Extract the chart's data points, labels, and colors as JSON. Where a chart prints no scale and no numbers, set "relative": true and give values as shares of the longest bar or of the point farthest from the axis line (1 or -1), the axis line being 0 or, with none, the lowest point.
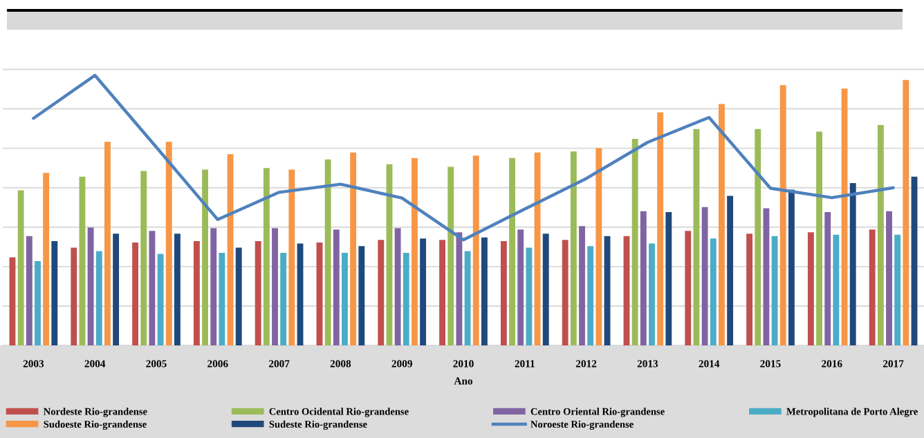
{
  "chart_data": {
    "type": "bar",
    "relative": true,
    "xlabel": "Ano",
    "grid": "y",
    "legend": "bottom",
    "categories": [
      "2003",
      "2004",
      "2005",
      "2006",
      "2007",
      "2008",
      "2009",
      "2010",
      "2011",
      "2012",
      "2013",
      "2014",
      "2015",
      "2016",
      "2017"
    ],
    "series": [
      {
        "name": "Nordeste Rio-grandense",
        "color": "#c0504d",
        "values": [
          0.326,
          0.362,
          0.381,
          0.386,
          0.386,
          0.381,
          0.391,
          0.391,
          0.386,
          0.391,
          0.405,
          0.424,
          0.414,
          0.419,
          0.429
        ]
      },
      {
        "name": "Centro Ocidental Rio-grandense",
        "color": "#9bbb59",
        "values": [
          0.574,
          0.625,
          0.646,
          0.651,
          0.657,
          0.689,
          0.671,
          0.661,
          0.694,
          0.718,
          0.765,
          0.801,
          0.801,
          0.792,
          0.816
        ]
      },
      {
        "name": "Centro Oriental Rio-grandense",
        "color": "#8064a2",
        "values": [
          0.405,
          0.437,
          0.424,
          0.434,
          0.434,
          0.429,
          0.434,
          0.419,
          0.429,
          0.442,
          0.497,
          0.512,
          0.508,
          0.494,
          0.497
        ]
      },
      {
        "name": "Metropolitana de Porto Alegre",
        "color": "#4bacc6",
        "values": [
          0.312,
          0.349,
          0.339,
          0.343,
          0.343,
          0.343,
          0.343,
          0.349,
          0.362,
          0.368,
          0.377,
          0.396,
          0.405,
          0.41,
          0.41
        ]
      },
      {
        "name": "Sudoeste Rio-grandense",
        "color": "#f79646",
        "values": [
          0.639,
          0.754,
          0.754,
          0.708,
          0.651,
          0.714,
          0.694,
          0.703,
          0.714,
          0.731,
          0.863,
          0.894,
          0.964,
          0.951,
          0.983
        ]
      },
      {
        "name": "Sudeste Rio-grandense",
        "color": "#1f497d",
        "values": [
          0.386,
          0.414,
          0.414,
          0.362,
          0.377,
          0.368,
          0.396,
          0.4,
          0.414,
          0.405,
          0.494,
          0.554,
          0.577,
          0.601,
          0.625
        ]
      },
      {
        "name": "Noroeste Rio-grandense",
        "type": "line",
        "color": "#4f81bd",
        "values": [
          0.841,
          1.0,
          0.734,
          0.466,
          0.567,
          0.597,
          0.546,
          0.391,
          0.505,
          0.618,
          0.752,
          0.844,
          0.582,
          0.547,
          0.584
        ]
      }
    ]
  }
}
